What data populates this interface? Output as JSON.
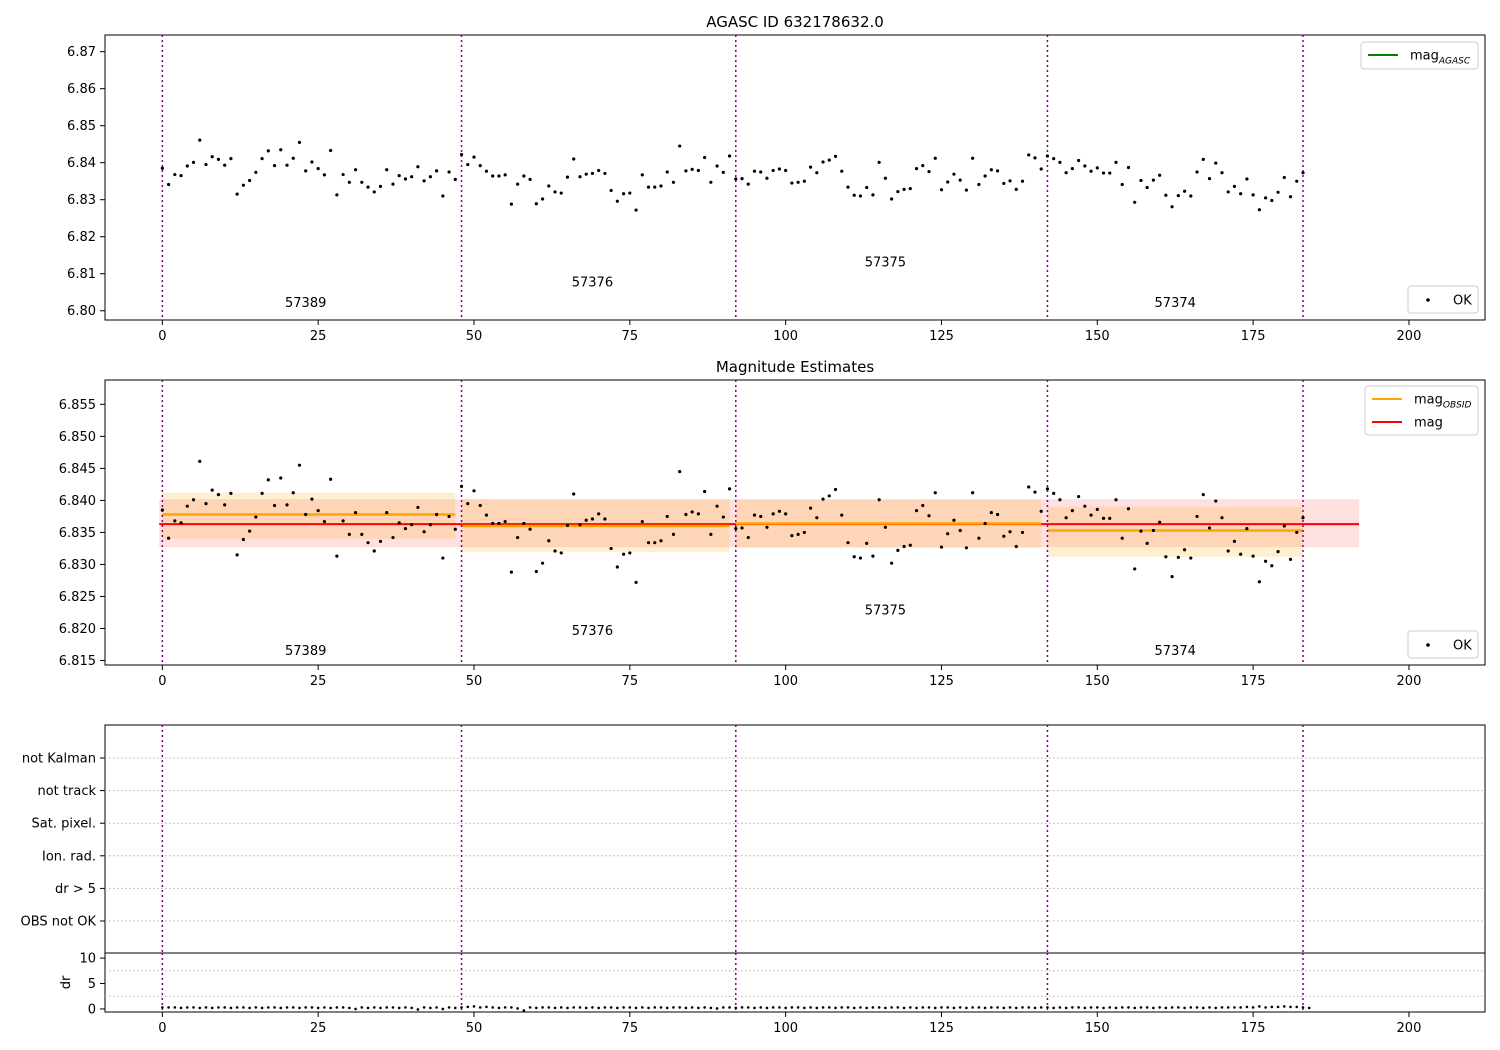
{
  "chart_data": [
    {
      "type": "scatter",
      "title": "AGASC ID 632178632.0",
      "xlim": [
        -9.2,
        212.2
      ],
      "ylim": [
        6.7975,
        6.8745
      ],
      "xticks": [
        0,
        25,
        50,
        75,
        100,
        125,
        150,
        175,
        200
      ],
      "yticks": [
        6.8,
        6.81,
        6.82,
        6.83,
        6.84,
        6.85,
        6.86,
        6.87
      ],
      "ytick_labels": [
        "6.80",
        "6.81",
        "6.82",
        "6.83",
        "6.84",
        "6.85",
        "6.86",
        "6.87"
      ],
      "vlines": [
        0,
        48,
        92,
        142,
        183
      ],
      "segment_labels": [
        {
          "text": "57389",
          "x": 23,
          "y": 6.801
        },
        {
          "text": "57376",
          "x": 69,
          "y": 6.8065
        },
        {
          "text": "57375",
          "x": 116,
          "y": 6.812
        },
        {
          "text": "57374",
          "x": 162.5,
          "y": 6.801
        }
      ],
      "legend_top": [
        {
          "name": "mag",
          "sub": "AGASC",
          "color": "#008000"
        }
      ],
      "legend_bottom": [
        {
          "name": "OK"
        }
      ],
      "series": [
        {
          "name": "OK",
          "x_start": 0,
          "values": [
            6.8385,
            6.8341,
            6.8368,
            6.8365,
            6.8391,
            6.8401,
            6.8461,
            6.8395,
            6.8416,
            6.8409,
            6.8393,
            6.8411,
            6.8315,
            6.8339,
            6.8352,
            6.8374,
            6.8411,
            6.8432,
            6.8392,
            6.8435,
            6.8393,
            6.8412,
            6.8455,
            6.8378,
            6.8402,
            6.8384,
            6.8367,
            6.8433,
            6.8313,
            6.8368,
            6.8347,
            6.8381,
            6.8347,
            6.8334,
            6.8321,
            6.8336,
            6.8381,
            6.8342,
            6.8365,
            6.8356,
            6.8362,
            6.8389,
            6.8351,
            6.8362,
            6.8378,
            6.831,
            6.8375,
            6.8355,
            6.8422,
            6.8395,
            6.8415,
            6.8392,
            6.8377,
            6.8364,
            6.8364,
            6.8367,
            6.8288,
            6.8342,
            6.8364,
            6.8355,
            6.8289,
            6.8302,
            6.8337,
            6.8321,
            6.8318,
            6.8361,
            6.841,
            6.8362,
            6.8369,
            6.8371,
            6.8379,
            6.8371,
            6.8325,
            6.8296,
            6.8316,
            6.8318,
            6.8272,
            6.8367,
            6.8334,
            6.8334,
            6.8337,
            6.8375,
            6.8347,
            6.8445,
            6.8378,
            6.8382,
            6.8379,
            6.8414,
            6.8347,
            6.8391,
            6.8374,
            6.8418,
            6.8356,
            6.8357,
            6.8342,
            6.8377,
            6.8375,
            6.8358,
            6.8379,
            6.8383,
            6.8379,
            6.8345,
            6.8347,
            6.835,
            6.8388,
            6.8373,
            6.8402,
            6.8407,
            6.8417,
            6.8377,
            6.8334,
            6.8312,
            6.831,
            6.8333,
            6.8313,
            6.8401,
            6.8358,
            6.8302,
            6.8322,
            6.8328,
            6.833,
            6.8384,
            6.8392,
            6.8376,
            6.8412,
            6.8327,
            6.8348,
            6.8369,
            6.8353,
            6.8326,
            6.8412,
            6.8341,
            6.8364,
            6.8381,
            6.8378,
            6.8344,
            6.8351,
            6.8328,
            6.835,
            6.8421,
            6.8413,
            6.8383,
            6.8418,
            6.8411,
            6.8401,
            6.8373,
            6.8384,
            6.8406,
            6.8391,
            6.8377,
            6.8386,
            6.8372,
            6.8372,
            6.8401,
            6.8341,
            6.8387,
            6.8293,
            6.8352,
            6.8333,
            6.8353,
            6.8366,
            6.8312,
            6.8281,
            6.8311,
            6.8323,
            6.831,
            6.8375,
            6.8409,
            6.8357,
            6.8399,
            6.8373,
            6.8321,
            6.8336,
            6.8316,
            6.8356,
            6.8313,
            6.8273,
            6.8305,
            6.8298,
            6.832,
            6.836,
            6.8308,
            6.835,
            6.8373
          ]
        }
      ]
    },
    {
      "type": "scatter",
      "title": "Magnitude Estimates",
      "xlim": [
        -9.2,
        212.2
      ],
      "ylim": [
        6.8143,
        6.8588
      ],
      "xticks": [
        0,
        25,
        50,
        75,
        100,
        125,
        150,
        175,
        200
      ],
      "yticks": [
        6.815,
        6.82,
        6.825,
        6.83,
        6.835,
        6.84,
        6.845,
        6.85,
        6.855
      ],
      "ytick_labels": [
        "6.815",
        "6.820",
        "6.825",
        "6.830",
        "6.835",
        "6.840",
        "6.845",
        "6.850",
        "6.855"
      ],
      "vlines": [
        0,
        48,
        92,
        142,
        183
      ],
      "segment_labels": [
        {
          "text": "57389",
          "x": 23,
          "y": 6.8159
        },
        {
          "text": "57376",
          "x": 69,
          "y": 6.819
        },
        {
          "text": "57375",
          "x": 116,
          "y": 6.8222
        },
        {
          "text": "57374",
          "x": 162.5,
          "y": 6.8159
        }
      ],
      "mag_line": {
        "value": 6.8363,
        "band": [
          6.8327,
          6.8402
        ],
        "x_range": [
          -0.5,
          192
        ],
        "color": "#ff0000"
      },
      "obsid_means": [
        {
          "x_range": [
            0,
            47
          ],
          "value": 6.8378,
          "band": [
            6.834,
            6.8412
          ]
        },
        {
          "x_range": [
            48,
            91
          ],
          "value": 6.836,
          "band": [
            6.8319,
            6.8402
          ]
        },
        {
          "x_range": [
            92,
            141
          ],
          "value": 6.8364,
          "band": [
            6.8326,
            6.8401
          ]
        },
        {
          "x_range": [
            142,
            183
          ],
          "value": 6.8353,
          "band": [
            6.8312,
            6.839
          ]
        }
      ],
      "legend_top": [
        {
          "name": "mag",
          "sub": "OBSID",
          "color": "#ffa500"
        },
        {
          "name": "mag",
          "sub": "",
          "color": "#ff0000"
        }
      ],
      "legend_bottom": [
        {
          "name": "OK"
        }
      ],
      "series_ref": "same as chart 1"
    },
    {
      "type": "scatter",
      "title": "",
      "categories": [
        "not Kalman",
        "not track",
        "Sat. pixel.",
        "Ion. rad.",
        "dr > 5",
        "OBS not OK"
      ],
      "vlines": [
        0,
        48,
        92,
        142,
        183
      ],
      "xlim": [
        -9.2,
        212.2
      ]
    },
    {
      "type": "scatter",
      "ylabel": "dr",
      "xlim": [
        -9.2,
        212.2
      ],
      "ylim": [
        -0.6,
        11
      ],
      "yticks": [
        0,
        5,
        10
      ],
      "xticks": [
        0,
        25,
        50,
        75,
        100,
        125,
        150,
        175,
        200
      ],
      "vlines": [
        0,
        48,
        92,
        142,
        183
      ],
      "dr_values": [
        0.3,
        0.3,
        0.3,
        0.2,
        0.3,
        0.3,
        0.2,
        0.3,
        0.2,
        0.3,
        0.3,
        0.2,
        0.3,
        0.3,
        0.2,
        0.3,
        0.2,
        0.3,
        0.3,
        0.2,
        0.3,
        0.3,
        0.2,
        0.3,
        0.3,
        0.2,
        0.3,
        0.2,
        0.3,
        0.3,
        0.2,
        0.0,
        0.3,
        0.2,
        0.3,
        0.2,
        0.3,
        0.3,
        0.2,
        0.3,
        0.2,
        -0.1,
        0.3,
        0.2,
        0.3,
        0.0,
        0.3,
        0.2,
        0.3,
        0.4,
        0.5,
        0.3,
        0.4,
        0.3,
        0.2,
        0.3,
        0.3,
        0.1,
        -0.3,
        0.3,
        0.2,
        0.3,
        0.3,
        0.2,
        0.3,
        0.2,
        0.3,
        0.3,
        0.2,
        0.3,
        0.2,
        0.3,
        0.3,
        0.2,
        0.3,
        0.3,
        0.2,
        0.3,
        0.2,
        0.3,
        0.3,
        0.2,
        0.3,
        0.3,
        0.2,
        0.3,
        0.2,
        0.3,
        0.2,
        0.1,
        0.3,
        0.3,
        0.2,
        0.3,
        0.3,
        0.2,
        0.3,
        0.2,
        0.3,
        0.3,
        0.2,
        0.3,
        0.3,
        0.2,
        0.3,
        0.2,
        0.3,
        0.3,
        0.2,
        0.3,
        0.3,
        0.2,
        0.3,
        0.2,
        0.3,
        0.3,
        0.2,
        0.3,
        0.3,
        0.2,
        0.3,
        0.2,
        0.3,
        0.3,
        0.2,
        0.3,
        0.3,
        0.2,
        0.3,
        0.2,
        0.3,
        0.3,
        0.2,
        0.3,
        0.3,
        0.2,
        0.3,
        0.2,
        0.3,
        0.3,
        0.2,
        0.3,
        0.3,
        0.2,
        0.3,
        0.2,
        0.3,
        0.3,
        0.2,
        0.3,
        0.3,
        0.2,
        0.3,
        0.2,
        0.3,
        0.3,
        0.2,
        0.3,
        0.3,
        0.2,
        0.3,
        0.2,
        0.3,
        0.3,
        0.2,
        0.3,
        0.3,
        0.2,
        0.3,
        0.2,
        0.3,
        0.3,
        0.3,
        0.3,
        0.4,
        0.3,
        0.5,
        0.3,
        0.4,
        0.4,
        0.5,
        0.4,
        0.4,
        0.3,
        0.2
      ]
    }
  ]
}
